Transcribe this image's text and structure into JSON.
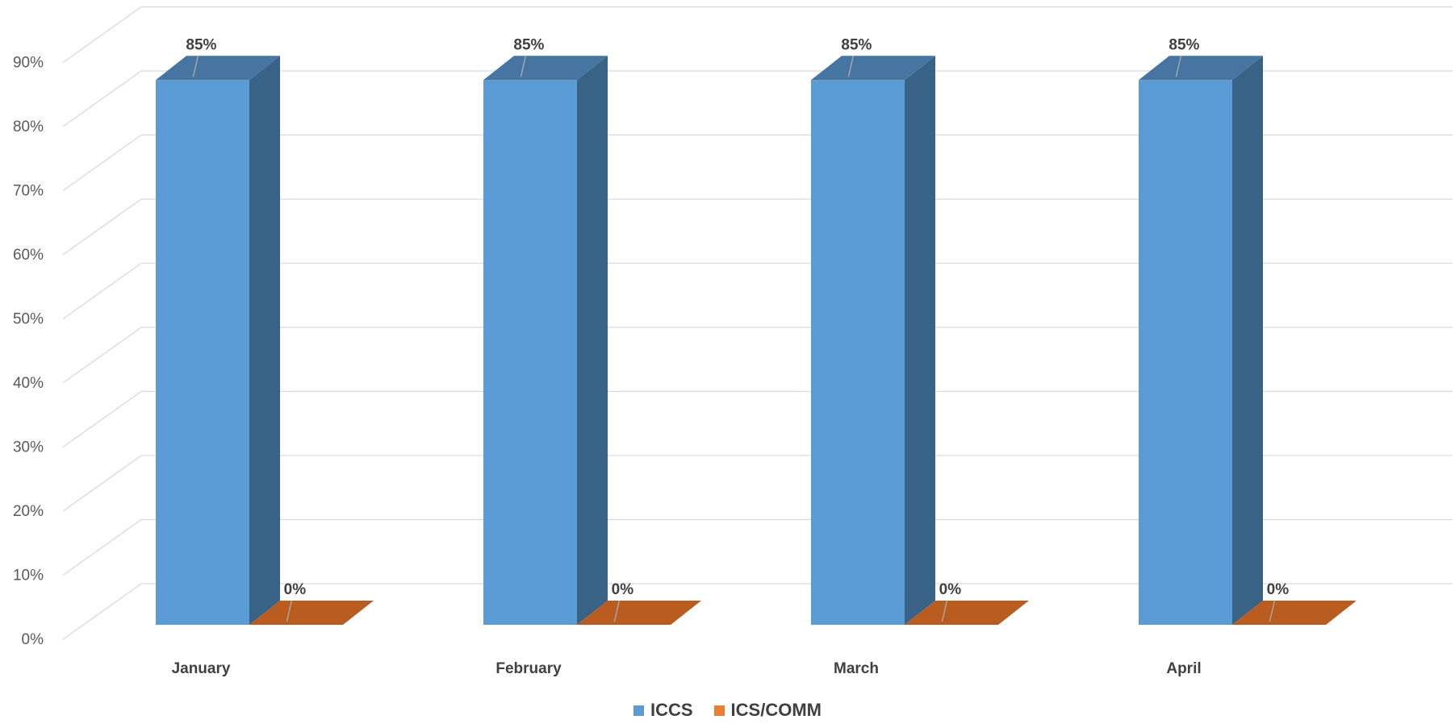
{
  "chart_data": {
    "type": "bar",
    "style": "3d-clustered-column",
    "categories": [
      "January",
      "February",
      "March",
      "April"
    ],
    "series": [
      {
        "name": "ICCS",
        "values": [
          85,
          85,
          85,
          85
        ],
        "labels": [
          "85%",
          "85%",
          "85%",
          "85%"
        ],
        "color": "#5B9BD5",
        "side_color": "#386387",
        "top_color": "#4575A0"
      },
      {
        "name": "ICS/COMM",
        "values": [
          0,
          0,
          0,
          0
        ],
        "labels": [
          "0%",
          "0%",
          "0%",
          "0%"
        ],
        "color": "#ED7D31",
        "side_color": "#A04E1A",
        "top_color": "#B85C20"
      }
    ],
    "yticks": [
      "0%",
      "10%",
      "20%",
      "30%",
      "40%",
      "50%",
      "60%",
      "70%",
      "80%",
      "90%"
    ],
    "ylim": [
      0,
      100
    ],
    "title": "",
    "xlabel": "",
    "ylabel": "",
    "grid": true,
    "gridline_color": "#D9D9D9",
    "legend_position": "bottom"
  }
}
